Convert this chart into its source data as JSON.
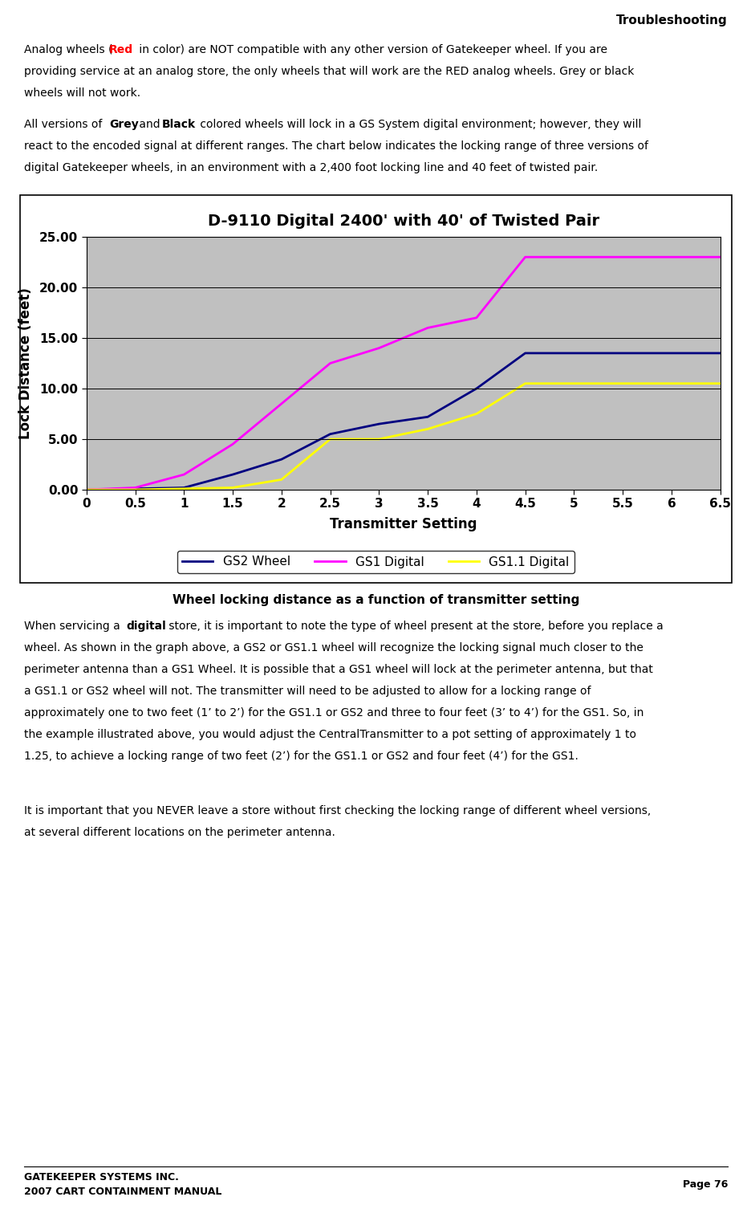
{
  "title": "D-9110 Digital 2400' with 40' of Twisted Pair",
  "xlabel": "Transmitter Setting",
  "ylabel": "Lock Distance (feet)",
  "caption": "Wheel locking distance as a function of transmitter setting",
  "xlim": [
    0,
    6.5
  ],
  "ylim": [
    0,
    25
  ],
  "xticks": [
    0,
    0.5,
    1,
    1.5,
    2,
    2.5,
    3,
    3.5,
    4,
    4.5,
    5,
    5.5,
    6,
    6.5
  ],
  "yticks": [
    0,
    5,
    10,
    15,
    20,
    25
  ],
  "ytick_labels": [
    "0.00",
    "5.00",
    "10.00",
    "15.00",
    "20.00",
    "25.00"
  ],
  "chart_bg": "#C0C0C0",
  "fig_bg": "#FFFFFF",
  "gs2_x": [
    0,
    0.5,
    1,
    1.5,
    2,
    2.5,
    3,
    3.5,
    4,
    4.5,
    5,
    5.5,
    6,
    6.5
  ],
  "gs2_y": [
    0,
    0.1,
    0.2,
    1.5,
    3.0,
    5.5,
    6.5,
    7.2,
    10.0,
    13.5,
    13.5,
    13.5,
    13.5,
    13.5
  ],
  "gs1_x": [
    0,
    0.5,
    1,
    1.5,
    2,
    2.5,
    3,
    3.5,
    4,
    4.5,
    5,
    5.5,
    6,
    6.5
  ],
  "gs1_y": [
    0,
    0.2,
    1.5,
    4.5,
    8.5,
    12.5,
    14.0,
    16.0,
    17.0,
    23.0,
    23.0,
    23.0,
    23.0,
    23.0
  ],
  "gs11_x": [
    0,
    0.5,
    1,
    1.5,
    2,
    2.5,
    3,
    3.5,
    4,
    4.5,
    5,
    5.5,
    6,
    6.5
  ],
  "gs11_y": [
    0,
    0.0,
    0.1,
    0.2,
    1.0,
    5.0,
    5.0,
    6.0,
    7.5,
    10.5,
    10.5,
    10.5,
    10.5,
    10.5
  ],
  "gs2_color": "#000080",
  "gs1_color": "#FF00FF",
  "gs11_color": "#FFFF00",
  "line_width": 2.0,
  "header_text": "Troubleshooting",
  "footer_left1": "GATEKEEPER SYSTEMS INC.",
  "footer_left2": "2007 CART CONTAINMENT MANUAL",
  "footer_right": "Page 76",
  "body_fontsize": 10,
  "title_fontsize": 14,
  "axis_label_fontsize": 12,
  "tick_fontsize": 11,
  "caption_fontsize": 11
}
